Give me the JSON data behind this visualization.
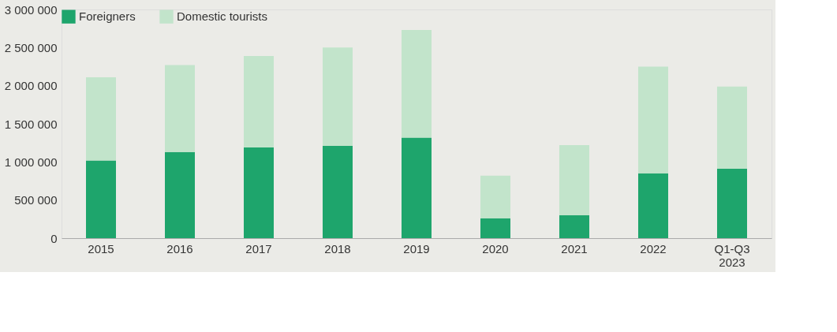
{
  "chart_data": {
    "type": "bar",
    "stacked": true,
    "categories": [
      "2015",
      "2016",
      "2017",
      "2018",
      "2019",
      "2020",
      "2021",
      "2022",
      "Q1-Q3 2023"
    ],
    "series": [
      {
        "name": "Foreigners",
        "color": "#1ea56c",
        "values": [
          1020000,
          1130000,
          1190000,
          1210000,
          1320000,
          260000,
          300000,
          850000,
          910000
        ]
      },
      {
        "name": "Domestic tourists",
        "color": "#c2e4cb",
        "values": [
          1090000,
          1140000,
          1200000,
          1290000,
          1410000,
          560000,
          920000,
          1400000,
          1080000
        ]
      }
    ],
    "ylim": [
      0,
      3000000
    ],
    "yticks": [
      {
        "value": 0,
        "label": "0"
      },
      {
        "value": 500000,
        "label": "500 000"
      },
      {
        "value": 1000000,
        "label": "1 000 000"
      },
      {
        "value": 1500000,
        "label": "1 500 000"
      },
      {
        "value": 2000000,
        "label": "2 000 000"
      },
      {
        "value": 2500000,
        "label": "2 500 000"
      },
      {
        "value": 3000000,
        "label": "3 000 000"
      }
    ],
    "grid": false,
    "legend": "top left"
  }
}
